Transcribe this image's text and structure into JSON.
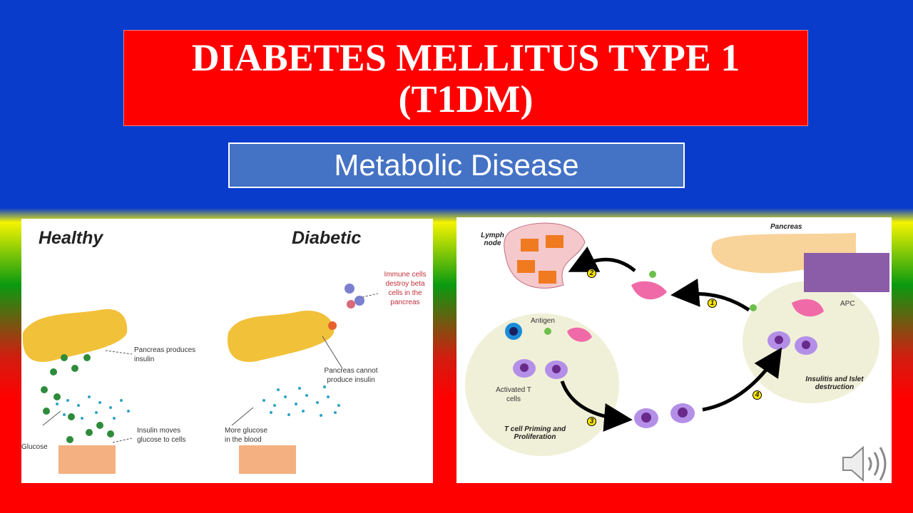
{
  "title": {
    "line1": "DIABETES MELLITUS TYPE 1",
    "line2": "(T1DM)"
  },
  "subtitle": "Metabolic Disease",
  "left_figure": {
    "heading_healthy": "Healthy",
    "heading_diabetic": "Diabetic",
    "labels": {
      "pancreas_produces": "Pancreas produces insulin",
      "glucose": "Glucose",
      "insulin_moves": "Insulin moves glucose to cells",
      "immune_cells": "Immune cells destroy beta cells in the pancreas",
      "pancreas_cannot": "Pancreas cannot produce insulin",
      "more_glucose": "More glucose in the blood"
    }
  },
  "right_figure": {
    "labels": {
      "lymph_node": "Lymph node",
      "pancreas": "Pancreas",
      "antigen": "Antigen",
      "apc": "APC",
      "activated_t_cells": "Activated T cells",
      "t_cell_priming": "T cell Priming and Proliferation",
      "insulitis": "Insulitis and Islet destruction"
    },
    "steps": [
      "1",
      "2",
      "3",
      "4"
    ]
  },
  "audio_icon": "speaker-icon",
  "colors": {
    "title_bg": "#ff0000",
    "subtitle_bg": "#4472c4",
    "top_bg": "#0a3ccc"
  }
}
